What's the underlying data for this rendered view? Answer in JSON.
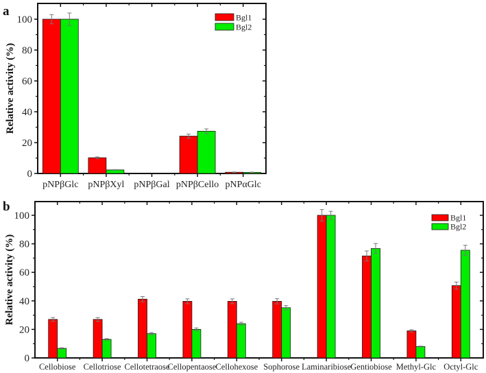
{
  "colors": {
    "bgl1": "#ff0000",
    "bgl2": "#00ee00",
    "axis": "#111111",
    "errorbar": "#777777"
  },
  "chart_data": [
    {
      "panel": "a",
      "type": "bar",
      "title": "",
      "xlabel": "",
      "ylabel": "Relative activity (%)",
      "ylim": [
        0,
        110
      ],
      "yticks": [
        0,
        20,
        40,
        60,
        80,
        100
      ],
      "grid": false,
      "legend_position": "upper right",
      "categories": [
        "pNPβGlc",
        "pNPβXyl",
        "pNPβGal",
        "pNPβCello",
        "pNPαGlc"
      ],
      "series": [
        {
          "name": "Bgl1",
          "values": [
            100,
            10.2,
            0,
            24.2,
            0.8
          ],
          "errors": [
            3,
            0.5,
            0,
            1.3,
            0.2
          ]
        },
        {
          "name": "Bgl2",
          "values": [
            100,
            2.3,
            0,
            27.4,
            0.7
          ],
          "errors": [
            4,
            0.2,
            0,
            1.5,
            0.2
          ]
        }
      ]
    },
    {
      "panel": "b",
      "type": "bar",
      "title": "",
      "xlabel": "",
      "ylabel": "Relative activity (%)",
      "ylim": [
        0,
        110
      ],
      "yticks": [
        0,
        20,
        40,
        60,
        80,
        100
      ],
      "grid": false,
      "legend_position": "upper right",
      "categories": [
        "Cellobiose",
        "Cellotriose",
        "Cellotetraose",
        "Cellopentaose",
        "Cellohexose",
        "Sophorose",
        "Laminaribiose",
        "Gentiobiose",
        "Methyl-Glc",
        "Octyl-Glc"
      ],
      "series": [
        {
          "name": "Bgl1",
          "values": [
            27,
            27,
            41.2,
            39.7,
            39.7,
            39.7,
            100,
            71.5,
            19,
            50.7
          ],
          "errors": [
            1.3,
            1.3,
            1.8,
            1.7,
            1.7,
            1.8,
            4,
            3.5,
            0.8,
            2.5
          ]
        },
        {
          "name": "Bgl2",
          "values": [
            6.7,
            13,
            17,
            20,
            24,
            35.2,
            100,
            76.7,
            8,
            75.5
          ],
          "errors": [
            0.4,
            0.5,
            0.8,
            1,
            1,
            1.5,
            2.8,
            3.5,
            0.3,
            3.5
          ]
        }
      ]
    }
  ]
}
